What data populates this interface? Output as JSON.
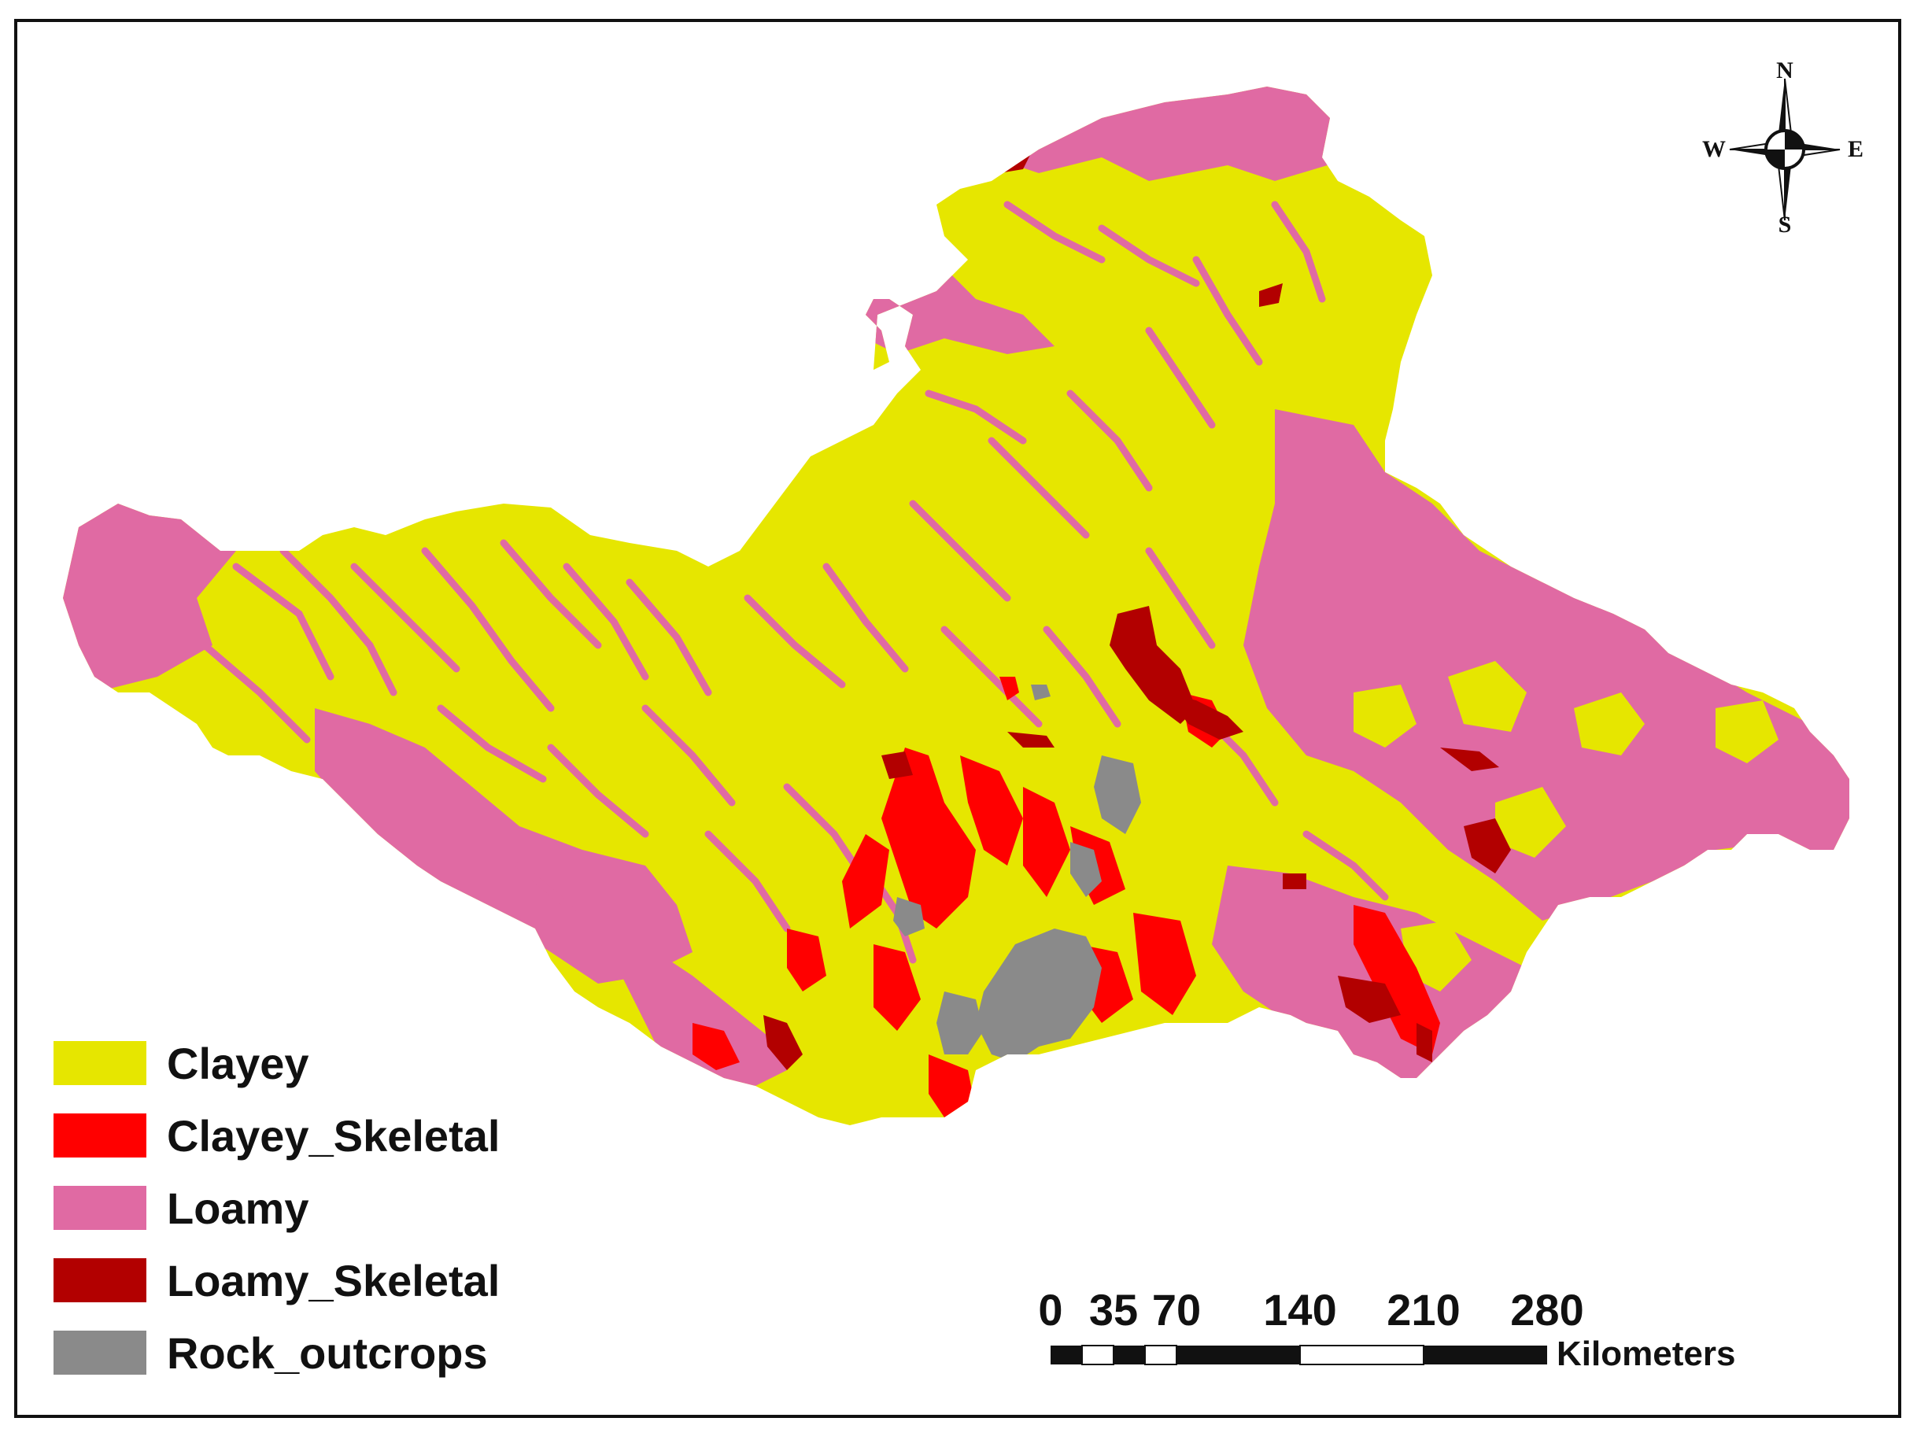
{
  "legend": {
    "items": [
      {
        "label": "Clayey",
        "color": "#e6e600"
      },
      {
        "label": "Clayey_Skeletal",
        "color": "#ff0000"
      },
      {
        "label": "Loamy",
        "color": "#e06aa3"
      },
      {
        "label": "Loamy_Skeletal",
        "color": "#b20000"
      },
      {
        "label": "Rock_outcrops",
        "color": "#8a8a8a"
      }
    ]
  },
  "scale_bar": {
    "labels": [
      "0",
      "35",
      "70",
      "140",
      "210",
      "280"
    ],
    "unit": "Kilometers"
  },
  "north_arrow": {
    "n": "N",
    "s": "S",
    "e": "E",
    "w": "W",
    "icon": "compass-rose-icon"
  },
  "colors": {
    "clayey": "#e6e600",
    "clayey_skeletal": "#ff0000",
    "loamy": "#e06aa3",
    "loamy_skeletal": "#b20000",
    "rock_outcrops": "#8a8a8a"
  }
}
